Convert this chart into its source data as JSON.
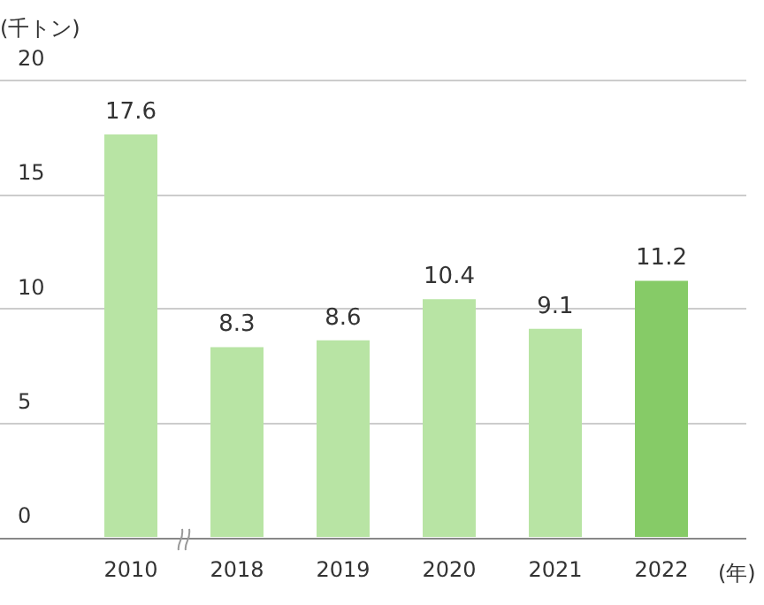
{
  "chart_data": {
    "type": "bar",
    "ylabel": "(千トン)",
    "xlabel": "(年)",
    "categories": [
      "2010",
      "2018",
      "2019",
      "2020",
      "2021",
      "2022"
    ],
    "values": [
      17.6,
      8.3,
      8.6,
      10.4,
      9.1,
      11.2
    ],
    "colors": [
      "#b8e4a4",
      "#b8e4a4",
      "#b8e4a4",
      "#b8e4a4",
      "#b8e4a4",
      "#86cb67"
    ],
    "ylim": [
      0,
      20
    ],
    "yticks": [
      0,
      5,
      10,
      15,
      20
    ],
    "grid": "y",
    "data_labels": true,
    "legend": false
  }
}
